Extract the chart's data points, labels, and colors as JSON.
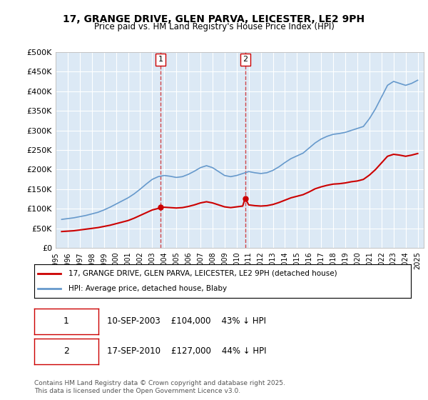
{
  "title": "17, GRANGE DRIVE, GLEN PARVA, LEICESTER, LE2 9PH",
  "subtitle": "Price paid vs. HM Land Registry's House Price Index (HPI)",
  "background_color": "#dce9f5",
  "plot_bg_color": "#dce9f5",
  "ylabel_ticks": [
    "£0",
    "£50K",
    "£100K",
    "£150K",
    "£200K",
    "£250K",
    "£300K",
    "£350K",
    "£400K",
    "£450K",
    "£500K"
  ],
  "ytick_values": [
    0,
    50000,
    100000,
    150000,
    200000,
    250000,
    300000,
    350000,
    400000,
    450000,
    500000
  ],
  "ylim": [
    0,
    500000
  ],
  "xlim_start": 1995.0,
  "xlim_end": 2025.5,
  "vline1_x": 2003.7,
  "vline2_x": 2010.7,
  "vline_color": "#cc0000",
  "vline_alpha": 0.7,
  "marker1_x": 2003.7,
  "marker1_y": 104000,
  "marker2_x": 2010.7,
  "marker2_y": 127000,
  "hpi_color": "#6699cc",
  "sold_color": "#cc0000",
  "legend_label_sold": "17, GRANGE DRIVE, GLEN PARVA, LEICESTER, LE2 9PH (detached house)",
  "legend_label_hpi": "HPI: Average price, detached house, Blaby",
  "table_rows": [
    {
      "num": "1",
      "date": "10-SEP-2003",
      "price": "£104,000",
      "note": "43% ↓ HPI"
    },
    {
      "num": "2",
      "date": "17-SEP-2010",
      "price": "£127,000",
      "note": "44% ↓ HPI"
    }
  ],
  "footnote": "Contains HM Land Registry data © Crown copyright and database right 2025.\nThis data is licensed under the Open Government Licence v3.0.",
  "hpi_data_x": [
    1995.5,
    1996.0,
    1996.5,
    1997.0,
    1997.5,
    1998.0,
    1998.5,
    1999.0,
    1999.5,
    2000.0,
    2000.5,
    2001.0,
    2001.5,
    2002.0,
    2002.5,
    2003.0,
    2003.5,
    2004.0,
    2004.5,
    2005.0,
    2005.5,
    2006.0,
    2006.5,
    2007.0,
    2007.5,
    2008.0,
    2008.5,
    2009.0,
    2009.5,
    2010.0,
    2010.5,
    2011.0,
    2011.5,
    2012.0,
    2012.5,
    2013.0,
    2013.5,
    2014.0,
    2014.5,
    2015.0,
    2015.5,
    2016.0,
    2016.5,
    2017.0,
    2017.5,
    2018.0,
    2018.5,
    2019.0,
    2019.5,
    2020.0,
    2020.5,
    2021.0,
    2021.5,
    2022.0,
    2022.5,
    2023.0,
    2023.5,
    2024.0,
    2024.5,
    2025.0
  ],
  "hpi_data_y": [
    73000,
    75000,
    77000,
    80000,
    83000,
    87000,
    91000,
    97000,
    104000,
    112000,
    120000,
    128000,
    138000,
    150000,
    163000,
    175000,
    182000,
    185000,
    183000,
    180000,
    182000,
    188000,
    196000,
    205000,
    210000,
    205000,
    195000,
    185000,
    182000,
    185000,
    190000,
    195000,
    192000,
    190000,
    192000,
    198000,
    207000,
    218000,
    228000,
    235000,
    242000,
    255000,
    268000,
    278000,
    285000,
    290000,
    292000,
    295000,
    300000,
    305000,
    310000,
    330000,
    355000,
    385000,
    415000,
    425000,
    420000,
    415000,
    420000,
    428000
  ],
  "sold_data_x": [
    1995.5,
    1996.0,
    1996.5,
    1997.0,
    1997.5,
    1998.0,
    1998.5,
    1999.0,
    1999.5,
    2000.0,
    2000.5,
    2001.0,
    2001.5,
    2002.0,
    2002.5,
    2003.0,
    2003.5,
    2003.7,
    2004.0,
    2004.5,
    2005.0,
    2005.5,
    2006.0,
    2006.5,
    2007.0,
    2007.5,
    2008.0,
    2008.5,
    2009.0,
    2009.5,
    2010.0,
    2010.5,
    2010.7,
    2011.0,
    2011.5,
    2012.0,
    2012.5,
    2013.0,
    2013.5,
    2014.0,
    2014.5,
    2015.0,
    2015.5,
    2016.0,
    2016.5,
    2017.0,
    2017.5,
    2018.0,
    2018.5,
    2019.0,
    2019.5,
    2020.0,
    2020.5,
    2021.0,
    2021.5,
    2022.0,
    2022.5,
    2023.0,
    2023.5,
    2024.0,
    2024.5,
    2025.0
  ],
  "sold_data_y": [
    42000,
    43000,
    44000,
    46000,
    48000,
    50000,
    52000,
    55000,
    58000,
    62000,
    66000,
    70000,
    76000,
    83000,
    90000,
    97000,
    101000,
    104000,
    104000,
    103000,
    102000,
    103000,
    106000,
    110000,
    115000,
    118000,
    115000,
    110000,
    105000,
    103000,
    105000,
    107000,
    127000,
    110000,
    108000,
    107000,
    108000,
    111000,
    116000,
    122000,
    128000,
    132000,
    136000,
    143000,
    151000,
    156000,
    160000,
    163000,
    164000,
    166000,
    169000,
    171000,
    175000,
    186000,
    200000,
    217000,
    234000,
    239000,
    237000,
    234000,
    237000,
    241000
  ]
}
